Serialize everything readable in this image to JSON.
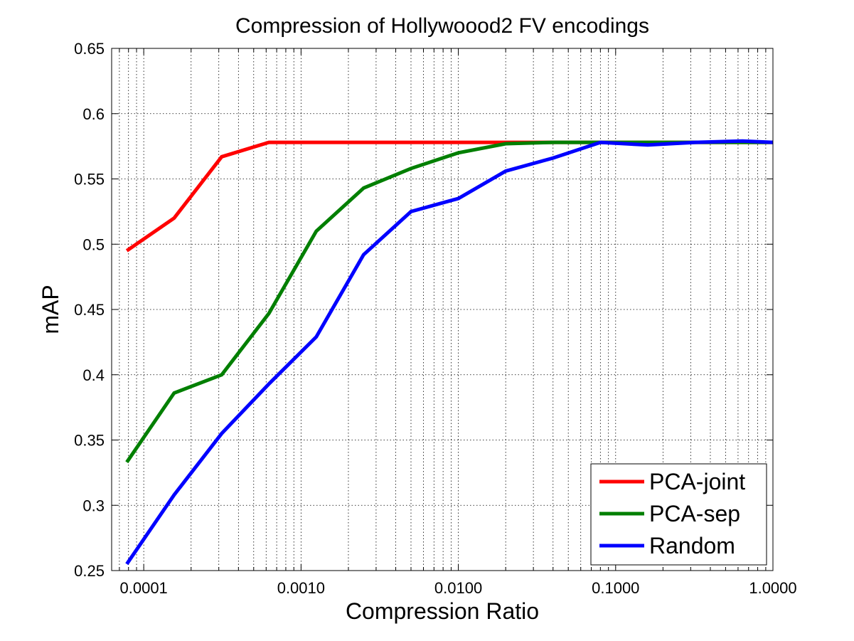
{
  "chart_data": {
    "type": "line",
    "title": "Compression of Hollywoood2 FV encodings",
    "xlabel": "Compression Ratio",
    "ylabel": "mAP",
    "xscale": "log",
    "xlim": [
      6.25e-05,
      1.0
    ],
    "ylim": [
      0.25,
      0.65
    ],
    "xticks": [
      0.0001,
      0.001,
      0.01,
      0.1,
      1.0
    ],
    "xtick_labels": [
      "0.0001",
      "0.0010",
      "0.0100",
      "0.1000",
      "1.0000"
    ],
    "yticks": [
      0.25,
      0.3,
      0.35,
      0.4,
      0.45,
      0.5,
      0.55,
      0.6,
      0.65
    ],
    "ytick_labels": [
      "0.25",
      "0.3",
      "0.35",
      "0.4",
      "0.45",
      "0.5",
      "0.55",
      "0.6",
      "0.65"
    ],
    "grid": true,
    "legend_position": "bottom-right",
    "x": [
      7.8e-05,
      0.000156,
      0.000313,
      0.000625,
      0.00125,
      0.0025,
      0.005,
      0.01,
      0.02,
      0.04,
      0.08,
      0.16,
      0.32,
      0.64,
      1.0
    ],
    "series": [
      {
        "name": "PCA-joint",
        "color": "#ff0000",
        "values": [
          0.495,
          0.52,
          0.567,
          0.578,
          0.578,
          0.578,
          0.578,
          0.578,
          0.578,
          0.578,
          0.578,
          0.578,
          0.578,
          0.578,
          0.578
        ]
      },
      {
        "name": "PCA-sep",
        "color": "#007f00",
        "values": [
          0.333,
          0.386,
          0.4,
          0.447,
          0.51,
          0.543,
          0.558,
          0.57,
          0.577,
          0.578,
          0.578,
          0.578,
          0.578,
          0.578,
          0.578
        ]
      },
      {
        "name": "Random",
        "color": "#0000ff",
        "values": [
          0.255,
          0.308,
          0.355,
          0.393,
          0.429,
          0.492,
          0.525,
          0.535,
          0.556,
          0.566,
          0.578,
          0.576,
          0.578,
          0.579,
          0.578
        ]
      }
    ]
  }
}
